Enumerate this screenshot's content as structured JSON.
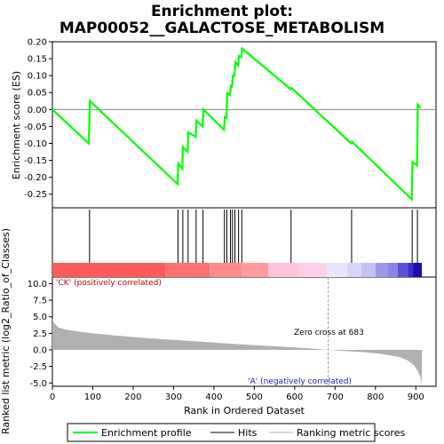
{
  "title_line1": "Enrichment plot:",
  "title_line2": "MAP00052__GALACTOSE_METABOLISM",
  "ylabel_top": "Enrichment score (ES)",
  "ylabel_bottom": "Ranked list metric (log2_Ratio_of_Classes)",
  "xlabel": "Rank in Ordered Dataset",
  "annotations": {
    "positive": "'CK' (positively correlated)",
    "negative": "'A' (negatively correlated)",
    "zero_cross": "Zero cross at 683"
  },
  "legend": {
    "enrichment": "Enrichment profile",
    "hits": "Hits",
    "ranking": "Ranking metric scores"
  },
  "colors": {
    "enrichment_line": "#00ff00",
    "hits": "#000000",
    "metric_fill": "#b0b0b0"
  },
  "chart_data": {
    "type": "line",
    "x_ticks": [
      0,
      100,
      200,
      300,
      400,
      500,
      600,
      700,
      800,
      900
    ],
    "xlim": [
      0,
      950
    ],
    "es_ylim": [
      -0.29,
      0.2
    ],
    "es_ticks": [
      0.2,
      0.15,
      0.1,
      0.05,
      0.0,
      -0.05,
      -0.1,
      -0.15,
      -0.2,
      -0.25
    ],
    "es_tick_labels": [
      "0.20",
      "0.15",
      "0.10",
      "0.05",
      "0.00",
      "-0.05",
      "-0.10",
      "-0.15",
      "-0.20",
      "-0.25"
    ],
    "metric_ylim": [
      -5.5,
      11.0
    ],
    "metric_ticks": [
      10.0,
      7.5,
      5.0,
      2.5,
      0.0,
      -2.5,
      -5.0
    ],
    "metric_tick_labels": [
      "10.0",
      "7.5",
      "5.0",
      "2.5",
      "0.0",
      "-2.5",
      "-5.0"
    ],
    "zero_cross": 683,
    "enrichment_profile": {
      "x": [
        0,
        90,
        93,
        310,
        312,
        322,
        323,
        335,
        337,
        355,
        357,
        372,
        374,
        425,
        427,
        431,
        433,
        440,
        442,
        445,
        447,
        451,
        453,
        460,
        462,
        468,
        470,
        590,
        592,
        740,
        742,
        890,
        892,
        903,
        905,
        912
      ],
      "y": [
        0.0,
        -0.1,
        0.025,
        -0.22,
        -0.16,
        -0.175,
        -0.11,
        -0.125,
        -0.068,
        -0.08,
        -0.033,
        -0.05,
        0.0,
        -0.06,
        -0.022,
        -0.025,
        0.048,
        0.042,
        0.07,
        0.068,
        0.1,
        0.1,
        0.14,
        0.13,
        0.158,
        0.155,
        0.18,
        0.06,
        0.064,
        -0.1,
        -0.095,
        -0.265,
        -0.155,
        -0.165,
        0.015,
        0.005
      ]
    },
    "hits": [
      92,
      311,
      323,
      336,
      356,
      373,
      426,
      432,
      441,
      446,
      452,
      461,
      469,
      591,
      741,
      891,
      904
    ],
    "ranking_metric": {
      "x": [
        0,
        5,
        15,
        30,
        60,
        100,
        150,
        200,
        250,
        300,
        350,
        400,
        450,
        500,
        550,
        600,
        650,
        683,
        720,
        760,
        800,
        830,
        860,
        880,
        895,
        905,
        912,
        915
      ],
      "y": [
        4.7,
        4.0,
        3.4,
        3.1,
        2.8,
        2.5,
        2.2,
        1.95,
        1.7,
        1.5,
        1.3,
        1.1,
        0.9,
        0.72,
        0.55,
        0.38,
        0.18,
        0.0,
        -0.15,
        -0.3,
        -0.5,
        -0.75,
        -1.1,
        -1.6,
        -2.3,
        -3.2,
        -4.2,
        -5.1
      ]
    }
  }
}
